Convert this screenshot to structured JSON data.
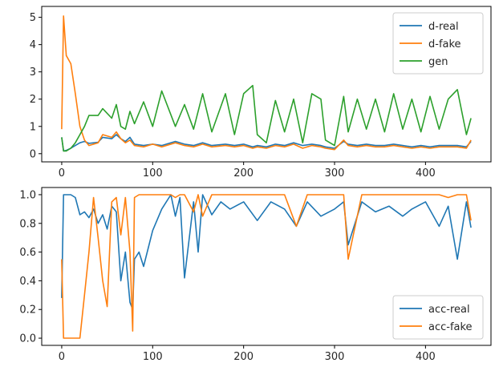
{
  "chart_data": [
    {
      "type": "line",
      "title": "",
      "xlabel": "",
      "ylabel": "",
      "xlim": [
        -22,
        472
      ],
      "ylim": [
        -0.3,
        5.4
      ],
      "xticks": [
        0,
        100,
        200,
        300,
        400
      ],
      "xtick_labels": [
        "0",
        "100",
        "200",
        "300",
        "400"
      ],
      "yticks": [
        0,
        1,
        2,
        3,
        4,
        5
      ],
      "ytick_labels": [
        "0",
        "1",
        "2",
        "3",
        "4",
        "5"
      ],
      "legend": "top-right",
      "grid": false,
      "x": [
        0,
        2,
        5,
        10,
        15,
        20,
        25,
        30,
        40,
        45,
        55,
        60,
        65,
        70,
        75,
        80,
        90,
        100,
        110,
        125,
        135,
        145,
        155,
        165,
        180,
        190,
        200,
        210,
        215,
        225,
        235,
        245,
        255,
        265,
        275,
        285,
        290,
        300,
        310,
        315,
        325,
        335,
        345,
        355,
        365,
        375,
        385,
        395,
        405,
        415,
        425,
        435,
        445,
        450
      ],
      "series": [
        {
          "name": "d-real",
          "color": "#1f77b4",
          "values": [
            0.6,
            0.1,
            0.12,
            0.2,
            0.3,
            0.4,
            0.45,
            0.38,
            0.42,
            0.6,
            0.55,
            0.7,
            0.55,
            0.45,
            0.6,
            0.35,
            0.3,
            0.35,
            0.3,
            0.45,
            0.35,
            0.3,
            0.4,
            0.3,
            0.35,
            0.3,
            0.35,
            0.25,
            0.3,
            0.25,
            0.35,
            0.3,
            0.4,
            0.3,
            0.35,
            0.3,
            0.25,
            0.2,
            0.45,
            0.35,
            0.3,
            0.35,
            0.3,
            0.3,
            0.35,
            0.3,
            0.25,
            0.3,
            0.25,
            0.3,
            0.3,
            0.3,
            0.25,
            0.45
          ]
        },
        {
          "name": "d-fake",
          "color": "#ff7f0e",
          "values": [
            0.9,
            5.05,
            3.6,
            3.3,
            2.2,
            1.0,
            0.5,
            0.3,
            0.4,
            0.7,
            0.6,
            0.8,
            0.55,
            0.4,
            0.5,
            0.3,
            0.25,
            0.35,
            0.25,
            0.4,
            0.3,
            0.25,
            0.35,
            0.25,
            0.3,
            0.25,
            0.3,
            0.2,
            0.25,
            0.2,
            0.3,
            0.25,
            0.35,
            0.2,
            0.3,
            0.25,
            0.2,
            0.15,
            0.5,
            0.3,
            0.25,
            0.3,
            0.25,
            0.25,
            0.3,
            0.25,
            0.2,
            0.25,
            0.2,
            0.25,
            0.25,
            0.25,
            0.2,
            0.5
          ]
        },
        {
          "name": "gen",
          "color": "#2ca02c",
          "values": [
            0.6,
            0.1,
            0.1,
            0.2,
            0.4,
            0.7,
            1.0,
            1.4,
            1.4,
            1.65,
            1.3,
            1.8,
            1.0,
            0.9,
            1.55,
            1.1,
            1.9,
            1.0,
            2.3,
            1.0,
            1.8,
            0.9,
            2.2,
            0.8,
            2.2,
            0.7,
            2.2,
            2.5,
            0.7,
            0.4,
            1.95,
            0.8,
            2.0,
            0.4,
            2.2,
            2.0,
            0.5,
            0.3,
            2.1,
            0.8,
            2.0,
            0.9,
            2.0,
            0.8,
            2.2,
            0.9,
            2.0,
            0.8,
            2.1,
            0.9,
            2.0,
            2.35,
            0.7,
            1.3
          ]
        }
      ]
    },
    {
      "type": "line",
      "title": "",
      "xlabel": "",
      "ylabel": "",
      "xlim": [
        -22,
        472
      ],
      "ylim": [
        -0.05,
        1.05
      ],
      "xticks": [
        0,
        100,
        200,
        300,
        400
      ],
      "xtick_labels": [
        "0",
        "100",
        "200",
        "300",
        "400"
      ],
      "yticks": [
        0,
        0.2,
        0.4,
        0.6,
        0.8,
        1.0
      ],
      "ytick_labels": [
        "0.0",
        "0.2",
        "0.4",
        "0.6",
        "0.8",
        "1.0"
      ],
      "legend": "bottom-right",
      "grid": false,
      "x": [
        0,
        2,
        5,
        10,
        15,
        20,
        25,
        30,
        35,
        40,
        45,
        50,
        55,
        60,
        65,
        70,
        75,
        78,
        80,
        85,
        90,
        100,
        110,
        120,
        125,
        130,
        135,
        145,
        150,
        155,
        165,
        175,
        185,
        200,
        215,
        230,
        245,
        258,
        270,
        285,
        300,
        310,
        315,
        330,
        345,
        360,
        375,
        385,
        400,
        415,
        425,
        435,
        445,
        450
      ],
      "series": [
        {
          "name": "acc-real",
          "color": "#1f77b4",
          "values": [
            0.28,
            1.0,
            1.0,
            1.0,
            0.98,
            0.86,
            0.88,
            0.84,
            0.9,
            0.8,
            0.86,
            0.76,
            0.92,
            0.88,
            0.4,
            0.6,
            0.25,
            0.2,
            0.55,
            0.6,
            0.5,
            0.75,
            0.9,
            1.0,
            0.85,
            0.98,
            0.42,
            0.95,
            0.6,
            1.0,
            0.86,
            0.95,
            0.9,
            0.95,
            0.82,
            0.95,
            0.9,
            0.78,
            0.95,
            0.85,
            0.9,
            0.95,
            0.65,
            0.95,
            0.88,
            0.92,
            0.85,
            0.9,
            0.95,
            0.78,
            0.92,
            0.55,
            0.95,
            0.77
          ]
        },
        {
          "name": "acc-fake",
          "color": "#ff7f0e",
          "values": [
            0.55,
            0.0,
            0.0,
            0.0,
            0.0,
            0.0,
            0.3,
            0.6,
            0.98,
            0.7,
            0.4,
            0.22,
            0.95,
            0.98,
            0.72,
            0.98,
            0.6,
            0.05,
            0.98,
            1.0,
            1.0,
            1.0,
            1.0,
            1.0,
            0.98,
            1.0,
            1.0,
            0.88,
            1.0,
            0.85,
            1.0,
            1.0,
            1.0,
            1.0,
            1.0,
            1.0,
            1.0,
            0.78,
            1.0,
            1.0,
            1.0,
            1.0,
            0.55,
            1.0,
            1.0,
            1.0,
            1.0,
            1.0,
            1.0,
            1.0,
            0.98,
            1.0,
            1.0,
            0.82
          ]
        }
      ]
    }
  ]
}
